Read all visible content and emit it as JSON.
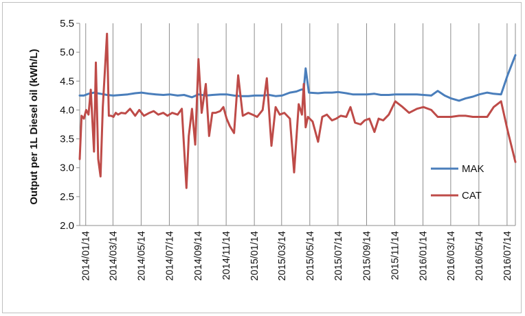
{
  "chart_data": {
    "type": "line",
    "title": "",
    "xlabel": "",
    "ylabel": "Output per 1L Diesel oil  (kWh/L)",
    "ylim": [
      2.0,
      5.5
    ],
    "yticks": [
      "2.0",
      "2.5",
      "3.0",
      "3.5",
      "4.0",
      "4.5",
      "5.0",
      "5.5"
    ],
    "xlim": [
      "2014/01/01",
      "2016/08/01"
    ],
    "xticks": [
      "2014/01/14",
      "2014/03/14",
      "2014/05/14",
      "2014/07/14",
      "2014/09/14",
      "2014/11/14",
      "2015/01/14",
      "2015/03/14",
      "2015/05/14",
      "2015/07/14",
      "2015/09/14",
      "2015/11/14",
      "2016/01/14",
      "2016/03/14",
      "2016/05/14",
      "2016/07/14"
    ],
    "grid": "vertical",
    "legend_position": "right",
    "series": [
      {
        "name": "MAK",
        "color": "#4a7ebb",
        "x": [
          "2014/01/01",
          "2014/01/10",
          "2014/01/20",
          "2014/02/01",
          "2014/02/15",
          "2014/03/01",
          "2014/03/15",
          "2014/04/01",
          "2014/04/15",
          "2014/05/01",
          "2014/05/15",
          "2014/06/01",
          "2014/06/15",
          "2014/07/01",
          "2014/07/15",
          "2014/08/01",
          "2014/08/15",
          "2014/09/01",
          "2014/09/15",
          "2014/10/01",
          "2014/10/15",
          "2014/11/01",
          "2014/11/15",
          "2014/12/01",
          "2014/12/15",
          "2015/01/01",
          "2015/01/15",
          "2015/02/01",
          "2015/02/15",
          "2015/03/01",
          "2015/03/15",
          "2015/04/01",
          "2015/04/15",
          "2015/04/25",
          "2015/05/01",
          "2015/05/05",
          "2015/05/12",
          "2015/06/01",
          "2015/06/15",
          "2015/07/01",
          "2015/07/15",
          "2015/08/01",
          "2015/08/15",
          "2015/09/01",
          "2015/09/15",
          "2015/10/01",
          "2015/10/15",
          "2015/11/01",
          "2015/11/15",
          "2015/12/01",
          "2015/12/15",
          "2016/01/01",
          "2016/01/15",
          "2016/02/01",
          "2016/02/15",
          "2016/03/01",
          "2016/03/15",
          "2016/04/01",
          "2016/04/15",
          "2016/05/01",
          "2016/05/15",
          "2016/06/01",
          "2016/06/15",
          "2016/07/01",
          "2016/07/15",
          "2016/08/01"
        ],
        "values": [
          4.25,
          4.25,
          4.28,
          4.3,
          4.28,
          4.26,
          4.25,
          4.26,
          4.27,
          4.29,
          4.3,
          4.28,
          4.27,
          4.26,
          4.27,
          4.25,
          4.26,
          4.22,
          4.27,
          4.25,
          4.26,
          4.27,
          4.27,
          4.25,
          4.24,
          4.24,
          4.25,
          4.25,
          4.26,
          4.24,
          4.25,
          4.3,
          4.32,
          4.35,
          4.36,
          4.72,
          4.3,
          4.29,
          4.3,
          4.3,
          4.31,
          4.29,
          4.27,
          4.27,
          4.27,
          4.28,
          4.26,
          4.26,
          4.27,
          4.27,
          4.27,
          4.27,
          4.26,
          4.25,
          4.33,
          4.25,
          4.2,
          4.16,
          4.2,
          4.23,
          4.27,
          4.3,
          4.28,
          4.27,
          4.6,
          4.95
        ]
      },
      {
        "name": "CAT",
        "color": "#be4b48",
        "x": [
          "2014/01/01",
          "2014/01/05",
          "2014/01/10",
          "2014/01/15",
          "2014/01/20",
          "2014/01/25",
          "2014/02/01",
          "2014/02/05",
          "2014/02/10",
          "2014/02/15",
          "2014/02/20",
          "2014/03/01",
          "2014/03/05",
          "2014/03/10",
          "2014/03/15",
          "2014/03/20",
          "2014/03/25",
          "2014/04/01",
          "2014/04/10",
          "2014/04/20",
          "2014/05/01",
          "2014/05/10",
          "2014/05/20",
          "2014/06/01",
          "2014/06/10",
          "2014/06/20",
          "2014/07/01",
          "2014/07/10",
          "2014/07/20",
          "2014/08/01",
          "2014/08/10",
          "2014/08/20",
          "2014/08/25",
          "2014/09/01",
          "2014/09/08",
          "2014/09/15",
          "2014/09/22",
          "2014/10/01",
          "2014/10/08",
          "2014/10/15",
          "2014/10/22",
          "2014/11/01",
          "2014/11/08",
          "2014/11/15",
          "2014/11/22",
          "2014/12/01",
          "2014/12/10",
          "2014/12/20",
          "2015/01/01",
          "2015/01/10",
          "2015/01/20",
          "2015/02/01",
          "2015/02/10",
          "2015/02/20",
          "2015/03/01",
          "2015/03/10",
          "2015/03/20",
          "2015/04/01",
          "2015/04/10",
          "2015/04/20",
          "2015/04/27",
          "2015/05/01",
          "2015/05/05",
          "2015/05/10",
          "2015/05/20",
          "2015/06/01",
          "2015/06/10",
          "2015/06/20",
          "2015/07/01",
          "2015/07/10",
          "2015/07/20",
          "2015/08/01",
          "2015/08/10",
          "2015/08/20",
          "2015/09/01",
          "2015/09/10",
          "2015/09/20",
          "2015/10/01",
          "2015/10/10",
          "2015/10/20",
          "2015/11/01",
          "2015/11/15",
          "2015/12/01",
          "2015/12/15",
          "2016/01/01",
          "2016/01/15",
          "2016/02/01",
          "2016/02/15",
          "2016/03/01",
          "2016/03/15",
          "2016/04/01",
          "2016/04/15",
          "2016/05/01",
          "2016/05/15",
          "2016/06/01",
          "2016/06/15",
          "2016/07/01",
          "2016/07/15",
          "2016/08/01"
        ],
        "values": [
          3.15,
          3.9,
          3.85,
          4.0,
          3.92,
          4.35,
          3.28,
          4.82,
          3.15,
          2.85,
          4.05,
          5.32,
          3.9,
          3.9,
          3.88,
          3.95,
          3.92,
          3.95,
          3.94,
          4.02,
          3.9,
          4.0,
          3.9,
          3.95,
          3.98,
          3.92,
          3.95,
          3.9,
          3.95,
          3.92,
          4.02,
          2.65,
          3.55,
          4.02,
          3.4,
          4.88,
          3.95,
          4.45,
          3.55,
          3.95,
          3.95,
          3.98,
          4.05,
          3.85,
          3.72,
          3.6,
          4.6,
          3.9,
          3.95,
          3.92,
          3.88,
          4.0,
          4.55,
          3.38,
          4.05,
          3.92,
          3.95,
          3.85,
          2.92,
          4.1,
          3.92,
          4.45,
          3.7,
          3.88,
          3.8,
          3.45,
          3.88,
          3.92,
          3.82,
          3.85,
          3.9,
          3.88,
          4.05,
          3.78,
          3.75,
          3.82,
          3.85,
          3.62,
          3.85,
          3.82,
          3.92,
          4.15,
          4.05,
          3.95,
          4.02,
          4.05,
          4.0,
          3.88,
          3.88,
          3.88,
          3.9,
          3.9,
          3.88,
          3.88,
          3.88,
          4.05,
          4.15,
          3.65,
          3.1
        ]
      }
    ]
  }
}
